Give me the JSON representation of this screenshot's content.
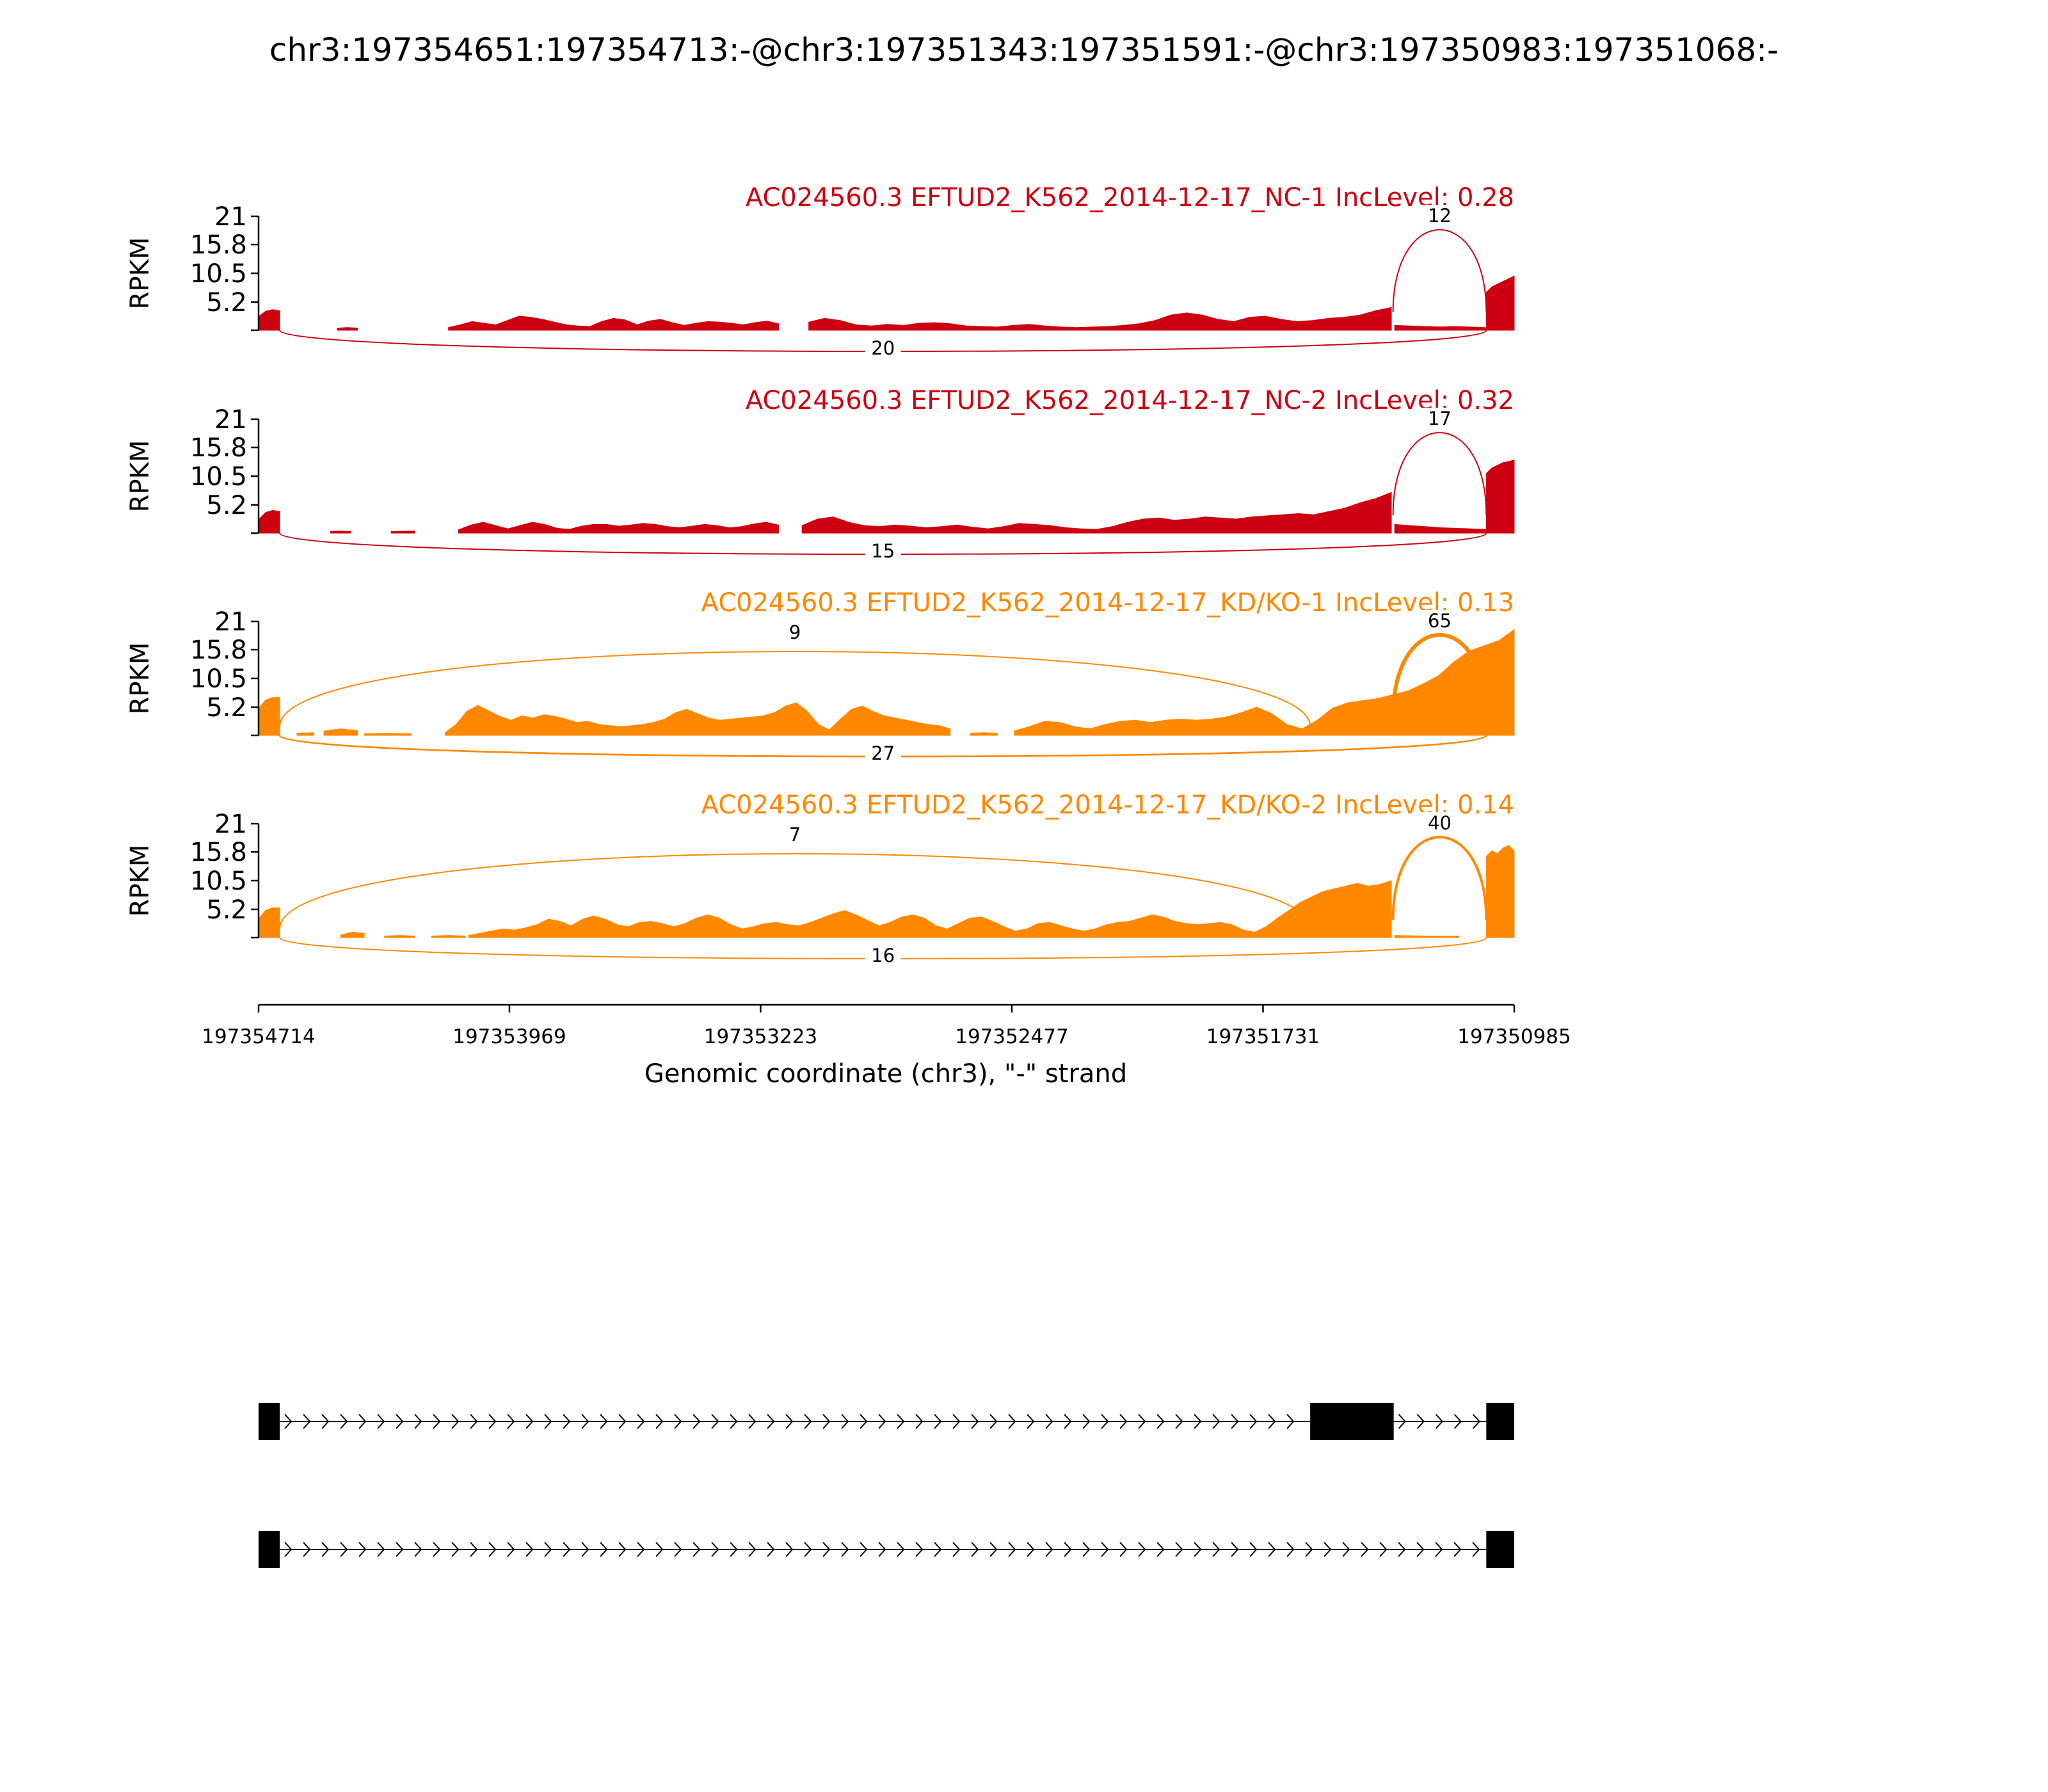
{
  "chart_data": {
    "type": "area",
    "title": "chr3:197354651:197354713:-@chr3:197351343:197351591:-@chr3:197350983:197351068:-",
    "xlabel": "Genomic coordinate (chr3), \"-\" strand",
    "ylabel": "RPKM",
    "xlim": [
      197354714,
      197350985
    ],
    "x_ticks": [
      "197354714",
      "197353969",
      "197353223",
      "197352477",
      "197351731",
      "197350985"
    ],
    "y_ticks": [
      "21",
      "15.8",
      "10.5",
      "5.2"
    ],
    "ylim": [
      0,
      21
    ],
    "colors": {
      "nc": "#cc0011",
      "kd": "#ff8800",
      "gene": "#000000"
    },
    "tracks": [
      {
        "name": "AC024560.3 EFTUD2_K562_2014-12-17_NC-1 IncLevel: 0.28",
        "group": "nc",
        "coverage": [
          {
            "x0": 197354714,
            "x1": 197354651,
            "values": [
              2.5,
              3.5,
              3.8,
              3.6
            ]
          },
          {
            "x0": 197354480,
            "x1": 197354420,
            "values": [
              0.4,
              0.5,
              0.4
            ]
          },
          {
            "x0": 197354150,
            "x1": 197353170,
            "values": [
              0.5,
              1.0,
              1.6,
              1.3,
              1.0,
              1.8,
              2.6,
              2.4,
              2.0,
              1.5,
              1.0,
              0.8,
              0.7,
              1.6,
              2.2,
              1.9,
              1.0,
              1.7,
              2.0,
              1.4,
              0.9,
              1.3,
              1.6,
              1.5,
              1.3,
              1.0,
              1.4,
              1.7,
              1.2
            ]
          },
          {
            "x0": 197353080,
            "x1": 197351350,
            "values": [
              1.5,
              2.2,
              1.8,
              1.0,
              0.8,
              1.1,
              0.9,
              1.3,
              1.4,
              1.2,
              0.8,
              0.7,
              0.6,
              0.9,
              1.1,
              0.8,
              0.6,
              0.5,
              0.6,
              0.7,
              0.9,
              1.2,
              1.8,
              2.8,
              3.2,
              2.8,
              2.0,
              1.6,
              2.4,
              2.6,
              2.0,
              1.6,
              1.8,
              2.2,
              2.4,
              2.8,
              3.6,
              4.2
            ]
          },
          {
            "x0": 197351340,
            "x1": 197351070,
            "values": [
              0.9,
              0.8,
              0.7,
              0.6,
              0.7,
              0.6,
              0.5
            ]
          },
          {
            "x0": 197351068,
            "x1": 197350985,
            "values": [
              7.0,
              8.0,
              8.5,
              9.0,
              9.5,
              10.0
            ]
          }
        ],
        "junctions": [
          {
            "from": 197351345,
            "to": 197351068,
            "count": "12",
            "side": "top"
          },
          {
            "from": 197354651,
            "to": 197351068,
            "count": "20",
            "side": "bottom"
          }
        ]
      },
      {
        "name": "AC024560.3 EFTUD2_K562_2014-12-17_NC-2 IncLevel: 0.32",
        "group": "nc",
        "coverage": [
          {
            "x0": 197354714,
            "x1": 197354651,
            "values": [
              2.5,
              3.8,
              4.2,
              4.0
            ]
          },
          {
            "x0": 197354500,
            "x1": 197354440,
            "values": [
              0.3,
              0.4,
              0.3
            ]
          },
          {
            "x0": 197354320,
            "x1": 197354250,
            "values": [
              0.3,
              0.4
            ]
          },
          {
            "x0": 197354120,
            "x1": 197353170,
            "values": [
              0.6,
              1.5,
              2.0,
              1.4,
              0.8,
              1.4,
              2.0,
              1.6,
              0.9,
              0.7,
              1.3,
              1.6,
              1.6,
              1.3,
              1.5,
              1.8,
              1.6,
              1.2,
              1.0,
              1.3,
              1.6,
              1.4,
              1.0,
              1.2,
              1.7,
              2.0,
              1.5
            ]
          },
          {
            "x0": 197353100,
            "x1": 197351350,
            "values": [
              1.4,
              2.6,
              3.0,
              2.0,
              1.4,
              1.2,
              1.5,
              1.3,
              1.0,
              1.2,
              1.5,
              1.1,
              0.8,
              1.2,
              1.8,
              1.6,
              1.4,
              1.0,
              0.8,
              0.7,
              1.2,
              2.0,
              2.6,
              2.8,
              2.4,
              2.6,
              3.0,
              2.8,
              2.6,
              3.0,
              3.2,
              3.4,
              3.6,
              3.4,
              4.0,
              4.6,
              5.6,
              6.4,
              7.5
            ]
          },
          {
            "x0": 197351340,
            "x1": 197351070,
            "values": [
              1.6,
              1.4,
              1.2,
              1.0,
              0.9,
              0.8,
              0.7
            ]
          },
          {
            "x0": 197351068,
            "x1": 197350985,
            "values": [
              11.0,
              12.0,
              12.5,
              13.0,
              13.2,
              13.5
            ]
          }
        ],
        "junctions": [
          {
            "from": 197351345,
            "to": 197351068,
            "count": "17",
            "side": "top"
          },
          {
            "from": 197354651,
            "to": 197351068,
            "count": "15",
            "side": "bottom"
          }
        ]
      },
      {
        "name": "AC024560.3 EFTUD2_K562_2014-12-17_KD/KO-1 IncLevel: 0.13",
        "group": "kd",
        "coverage": [
          {
            "x0": 197354714,
            "x1": 197354651,
            "values": [
              5.0,
              6.5,
              7.0,
              7.0
            ]
          },
          {
            "x0": 197354600,
            "x1": 197354550,
            "values": [
              0.4,
              0.5
            ]
          },
          {
            "x0": 197354520,
            "x1": 197354420,
            "values": [
              0.8,
              1.2,
              0.9
            ]
          },
          {
            "x0": 197354400,
            "x1": 197354260,
            "values": [
              0.3,
              0.4,
              0.3
            ]
          },
          {
            "x0": 197354160,
            "x1": 197352660,
            "values": [
              0.5,
              2.0,
              4.5,
              5.5,
              4.5,
              3.5,
              2.8,
              3.6,
              3.2,
              3.8,
              3.5,
              3.0,
              2.4,
              2.6,
              2.0,
              1.8,
              1.6,
              1.8,
              2.0,
              2.4,
              3.0,
              4.2,
              4.8,
              4.0,
              3.2,
              2.8,
              3.0,
              3.2,
              3.4,
              3.6,
              4.2,
              5.4,
              6.0,
              4.4,
              2.0,
              1.0,
              3.0,
              4.8,
              5.4,
              4.4,
              3.6,
              3.2,
              2.8,
              2.4,
              2.0,
              1.8,
              1.2
            ]
          },
          {
            "x0": 197352600,
            "x1": 197352520,
            "values": [
              0.4,
              0.5,
              0.4
            ]
          },
          {
            "x0": 197352470,
            "x1": 197350985,
            "values": [
              0.8,
              1.6,
              2.6,
              2.4,
              1.6,
              1.2,
              2.0,
              2.6,
              2.8,
              2.4,
              2.8,
              3.0,
              2.8,
              3.0,
              3.4,
              4.2,
              5.2,
              4.0,
              2.0,
              1.2,
              2.8,
              5.0,
              6.0,
              6.4,
              6.8,
              7.5,
              8.2,
              9.5,
              11.0,
              13.5,
              15.5,
              16.5,
              17.5,
              19.5
            ]
          }
        ],
        "junctions": [
          {
            "from": 197351345,
            "to": 197351068,
            "count": "65",
            "side": "top"
          },
          {
            "from": 197354651,
            "to": 197351591,
            "count": "9",
            "side": "top"
          },
          {
            "from": 197354651,
            "to": 197351068,
            "count": "27",
            "side": "bottom"
          }
        ]
      },
      {
        "name": "AC024560.3 EFTUD2_K562_2014-12-17_KD/KO-2 IncLevel: 0.14",
        "group": "kd",
        "coverage": [
          {
            "x0": 197354714,
            "x1": 197354651,
            "values": [
              3.5,
              5.0,
              5.5,
              5.5
            ]
          },
          {
            "x0": 197354470,
            "x1": 197354400,
            "values": [
              0.5,
              1.0,
              0.8
            ]
          },
          {
            "x0": 197354340,
            "x1": 197354250,
            "values": [
              0.3,
              0.4,
              0.3
            ]
          },
          {
            "x0": 197354200,
            "x1": 197354100,
            "values": [
              0.3,
              0.4,
              0.3
            ]
          },
          {
            "x0": 197354090,
            "x1": 197351350,
            "values": [
              0.4,
              0.8,
              1.2,
              1.6,
              1.4,
              1.8,
              2.4,
              3.4,
              3.0,
              2.2,
              3.4,
              4.0,
              3.4,
              2.4,
              2.0,
              2.8,
              3.0,
              2.6,
              2.0,
              2.6,
              3.6,
              4.2,
              3.6,
              2.4,
              1.6,
              2.0,
              2.6,
              2.8,
              2.4,
              2.2,
              2.8,
              3.6,
              4.4,
              5.0,
              4.2,
              3.2,
              2.2,
              2.8,
              3.8,
              4.2,
              3.6,
              2.2,
              1.6,
              2.6,
              3.6,
              3.8,
              3.0,
              2.0,
              1.2,
              1.6,
              2.6,
              2.8,
              2.2,
              1.6,
              1.2,
              1.6,
              2.4,
              2.8,
              3.0,
              3.6,
              4.2,
              3.8,
              3.0,
              2.6,
              2.4,
              2.6,
              2.8,
              2.4,
              1.4,
              1.0,
              2.0,
              3.6,
              5.0,
              6.5,
              7.5,
              8.5,
              9.0,
              9.5,
              10.0,
              9.5,
              9.8,
              10.5
            ]
          },
          {
            "x0": 197351340,
            "x1": 197351150,
            "values": [
              0.4,
              0.3,
              0.3
            ]
          },
          {
            "x0": 197351068,
            "x1": 197350985,
            "values": [
              15.0,
              16.0,
              15.5,
              16.5,
              17.0,
              16.0
            ]
          }
        ],
        "junctions": [
          {
            "from": 197351345,
            "to": 197351068,
            "count": "40",
            "side": "top"
          },
          {
            "from": 197354651,
            "to": 197351591,
            "count": "7",
            "side": "top"
          },
          {
            "from": 197354651,
            "to": 197351068,
            "count": "16",
            "side": "bottom"
          }
        ]
      }
    ],
    "gene_models": [
      {
        "exons": [
          [
            197354714,
            197354651
          ],
          [
            197351591,
            197351343
          ],
          [
            197351068,
            197350985
          ]
        ]
      },
      {
        "exons": [
          [
            197354714,
            197354651
          ],
          [
            197351068,
            197350985
          ]
        ]
      }
    ]
  }
}
